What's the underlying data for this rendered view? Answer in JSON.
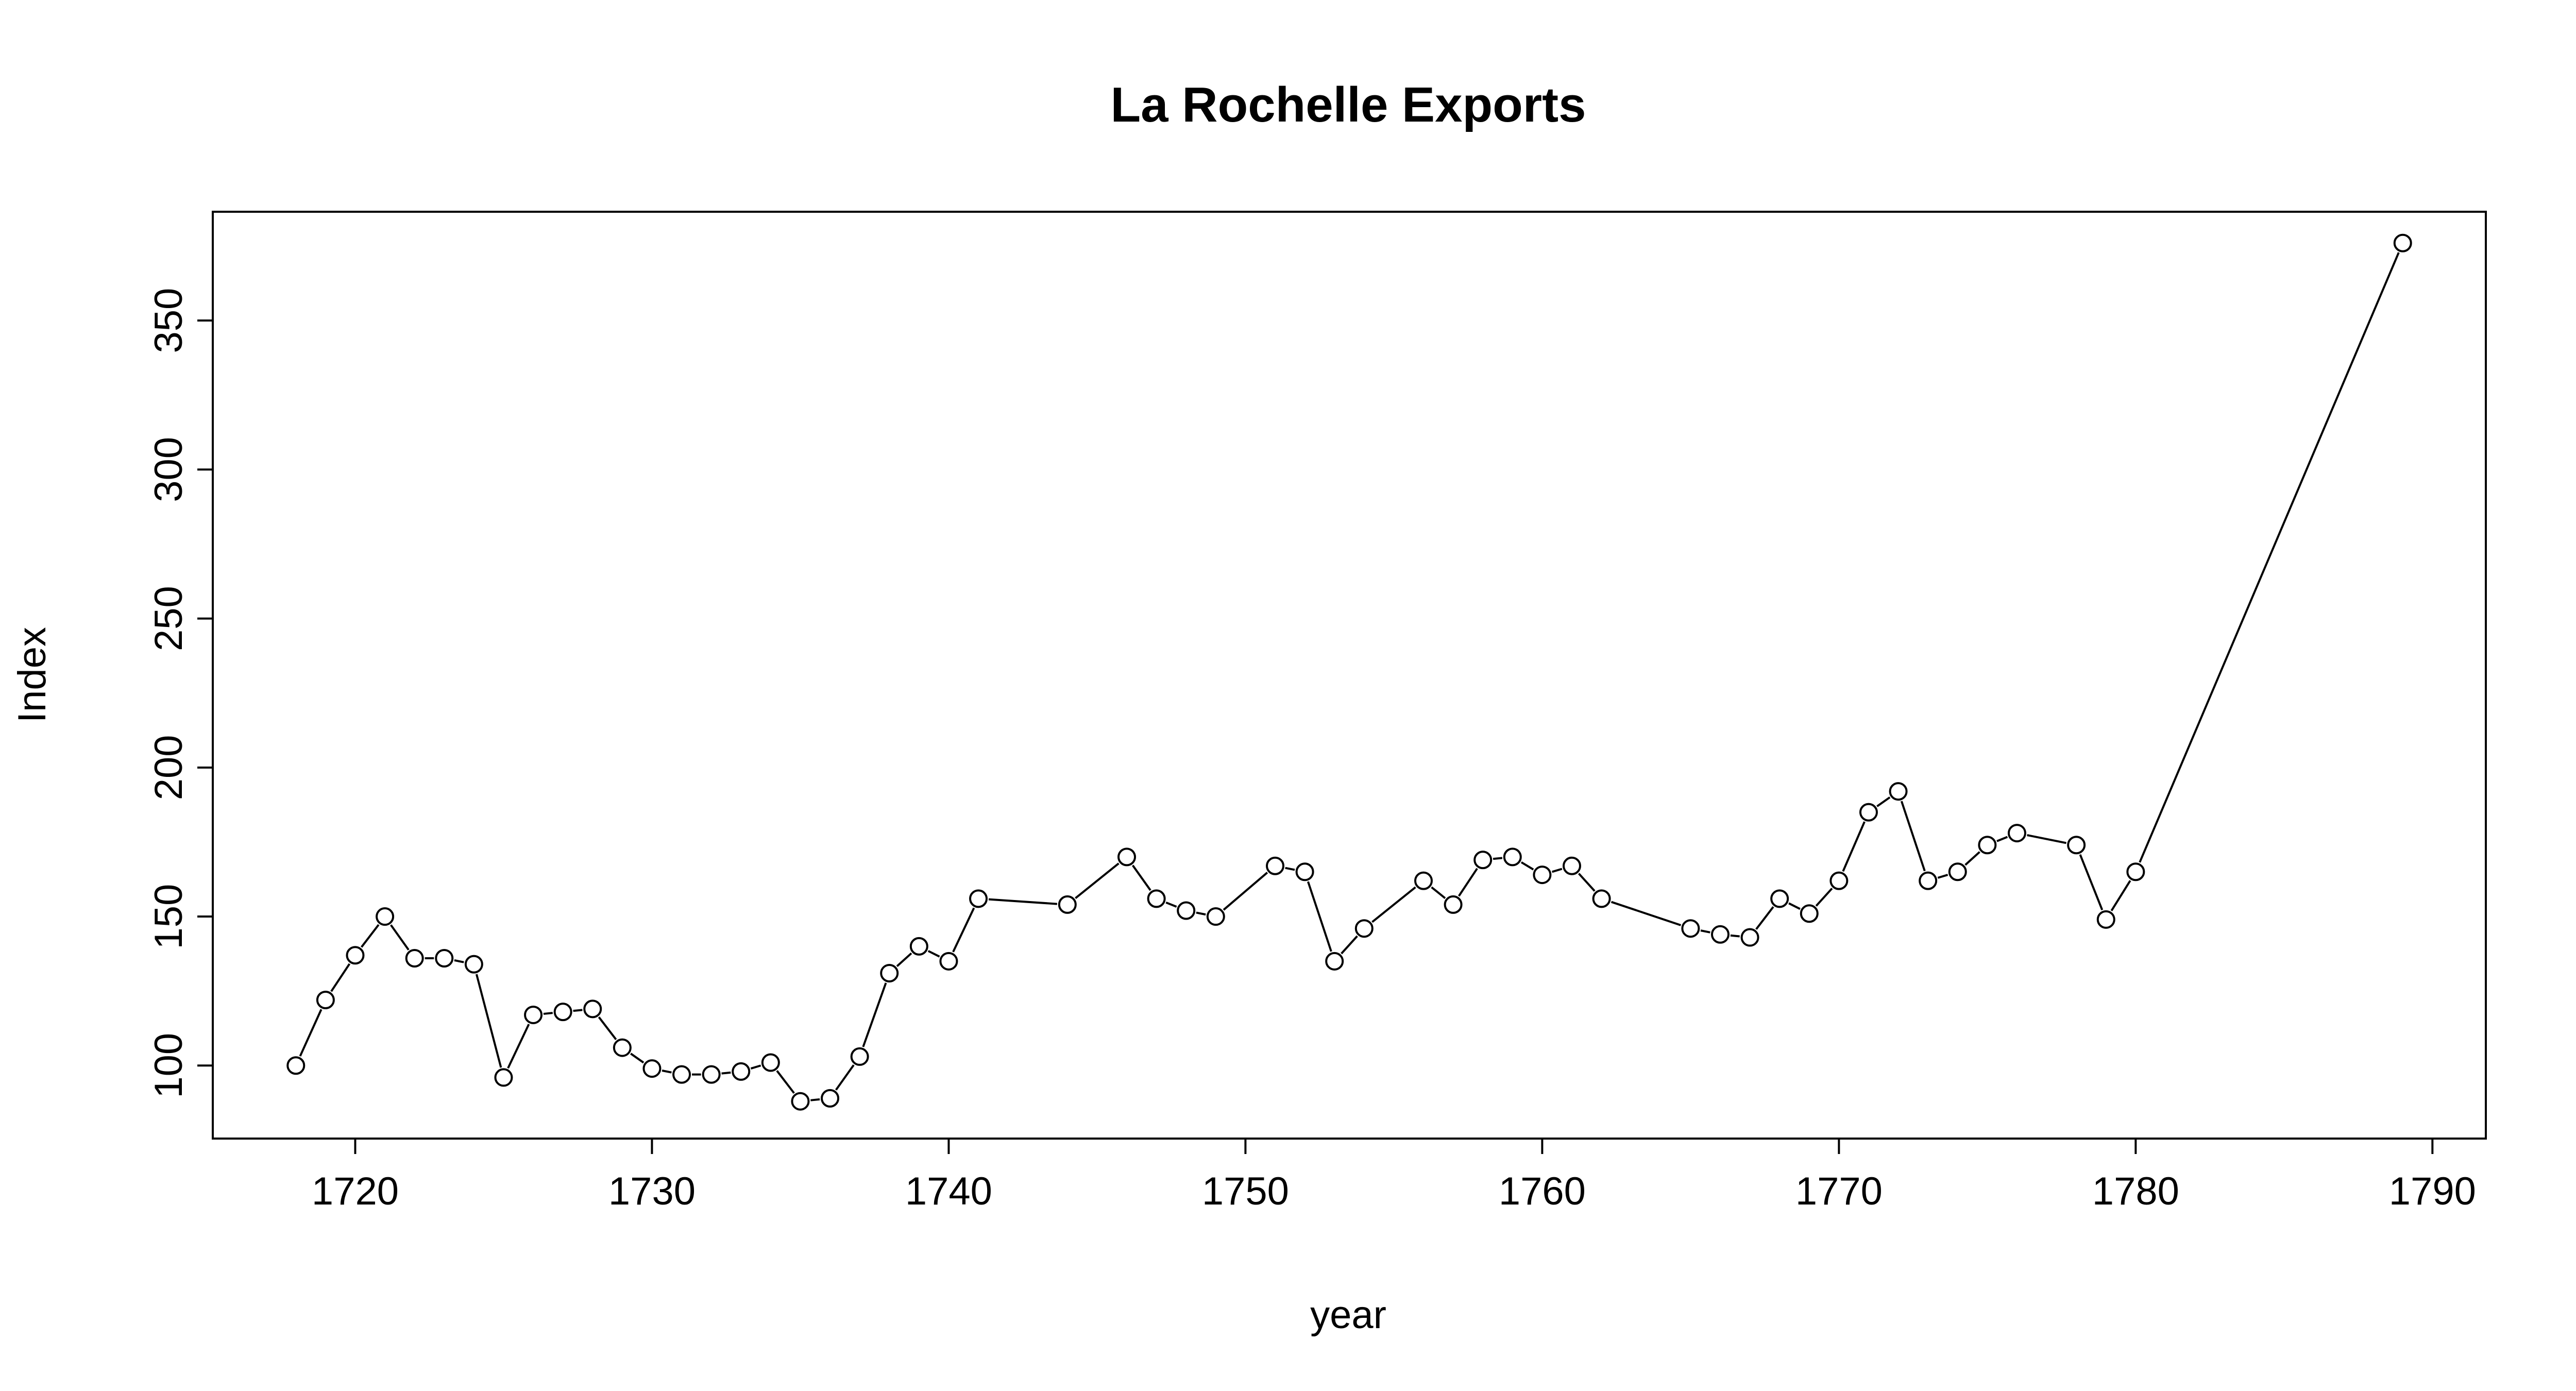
{
  "chart_data": {
    "type": "line",
    "title": "La Rochelle Exports",
    "xlabel": "year",
    "ylabel": "Index",
    "xlim": [
      1715.2,
      1791.8
    ],
    "ylim": [
      75.5,
      386.5
    ],
    "xticks": [
      1720,
      1730,
      1740,
      1750,
      1760,
      1770,
      1780,
      1790
    ],
    "yticks": [
      100,
      150,
      200,
      250,
      300,
      350
    ],
    "grid": false,
    "box": true,
    "marker": "open-circle",
    "line_color": "#000000",
    "series": [
      {
        "x": [
          1718,
          1719,
          1720,
          1721,
          1722,
          1723,
          1724,
          1725,
          1726,
          1727,
          1728,
          1729,
          1730,
          1731,
          1732,
          1733,
          1734,
          1735,
          1736,
          1737,
          1738,
          1739,
          1740,
          1741,
          1744,
          1746,
          1747,
          1748,
          1749,
          1751,
          1752,
          1753,
          1754,
          1756,
          1757,
          1758,
          1759,
          1760,
          1761,
          1762,
          1765,
          1766,
          1767,
          1768,
          1769,
          1770,
          1771,
          1772,
          1773,
          1774,
          1775,
          1776,
          1778,
          1779,
          1780,
          1789
        ],
        "values": [
          100,
          122,
          137,
          150,
          136,
          136,
          134,
          96,
          117,
          118,
          119,
          106,
          99,
          97,
          97,
          98,
          101,
          88,
          89,
          103,
          131,
          140,
          135,
          156,
          154,
          170,
          156,
          152,
          150,
          167,
          165,
          135,
          146,
          162,
          154,
          169,
          170,
          164,
          167,
          156,
          146,
          144,
          143,
          156,
          151,
          162,
          185,
          192,
          162,
          165,
          174,
          178,
          174,
          149,
          165,
          376
        ]
      }
    ]
  }
}
